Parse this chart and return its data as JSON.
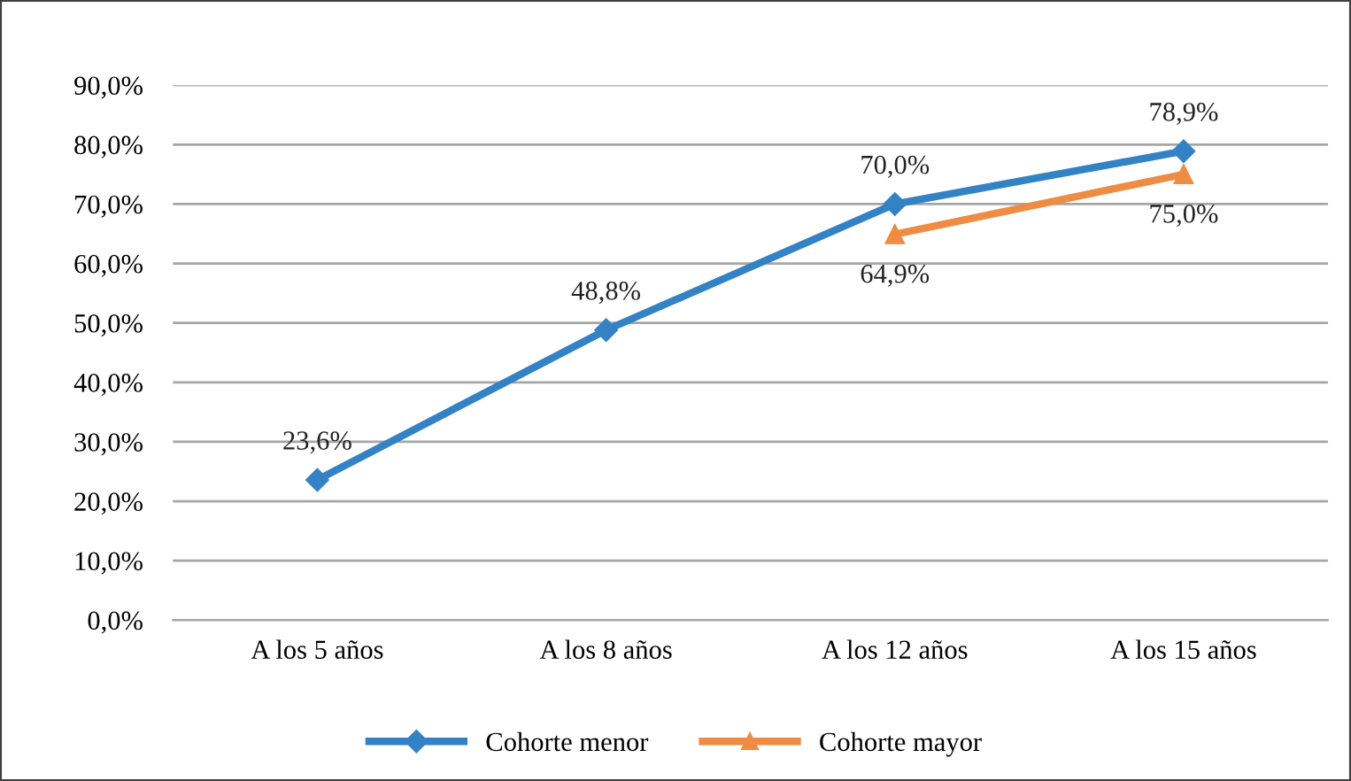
{
  "chart_data": {
    "type": "line",
    "categories": [
      "A los 5 años",
      "A los 8 años",
      "A los 12 años",
      "A los 15 años"
    ],
    "series": [
      {
        "name": "Cohorte menor",
        "color": "#3482c6",
        "marker": "diamond",
        "values": [
          23.6,
          48.8,
          70.0,
          78.9
        ],
        "value_labels": [
          "23,6%",
          "48,8%",
          "70,0%",
          "78,9%"
        ]
      },
      {
        "name": "Cohorte mayor",
        "color": "#ee8c43",
        "marker": "triangle",
        "values": [
          null,
          null,
          64.9,
          75.0
        ],
        "value_labels": [
          null,
          null,
          "64,9%",
          "75,0%"
        ]
      }
    ],
    "ylim": [
      0,
      90
    ],
    "yticks": [
      {
        "value": 0,
        "label": "0,0%"
      },
      {
        "value": 10,
        "label": "10,0%"
      },
      {
        "value": 20,
        "label": "20,0%"
      },
      {
        "value": 30,
        "label": "30,0%"
      },
      {
        "value": 40,
        "label": "40,0%"
      },
      {
        "value": 50,
        "label": "50,0%"
      },
      {
        "value": 60,
        "label": "60,0%"
      },
      {
        "value": 70,
        "label": "70,0%"
      },
      {
        "value": 80,
        "label": "80,0%"
      },
      {
        "value": 90,
        "label": "90,0%"
      }
    ],
    "grid": "y",
    "legend": "bottom"
  }
}
